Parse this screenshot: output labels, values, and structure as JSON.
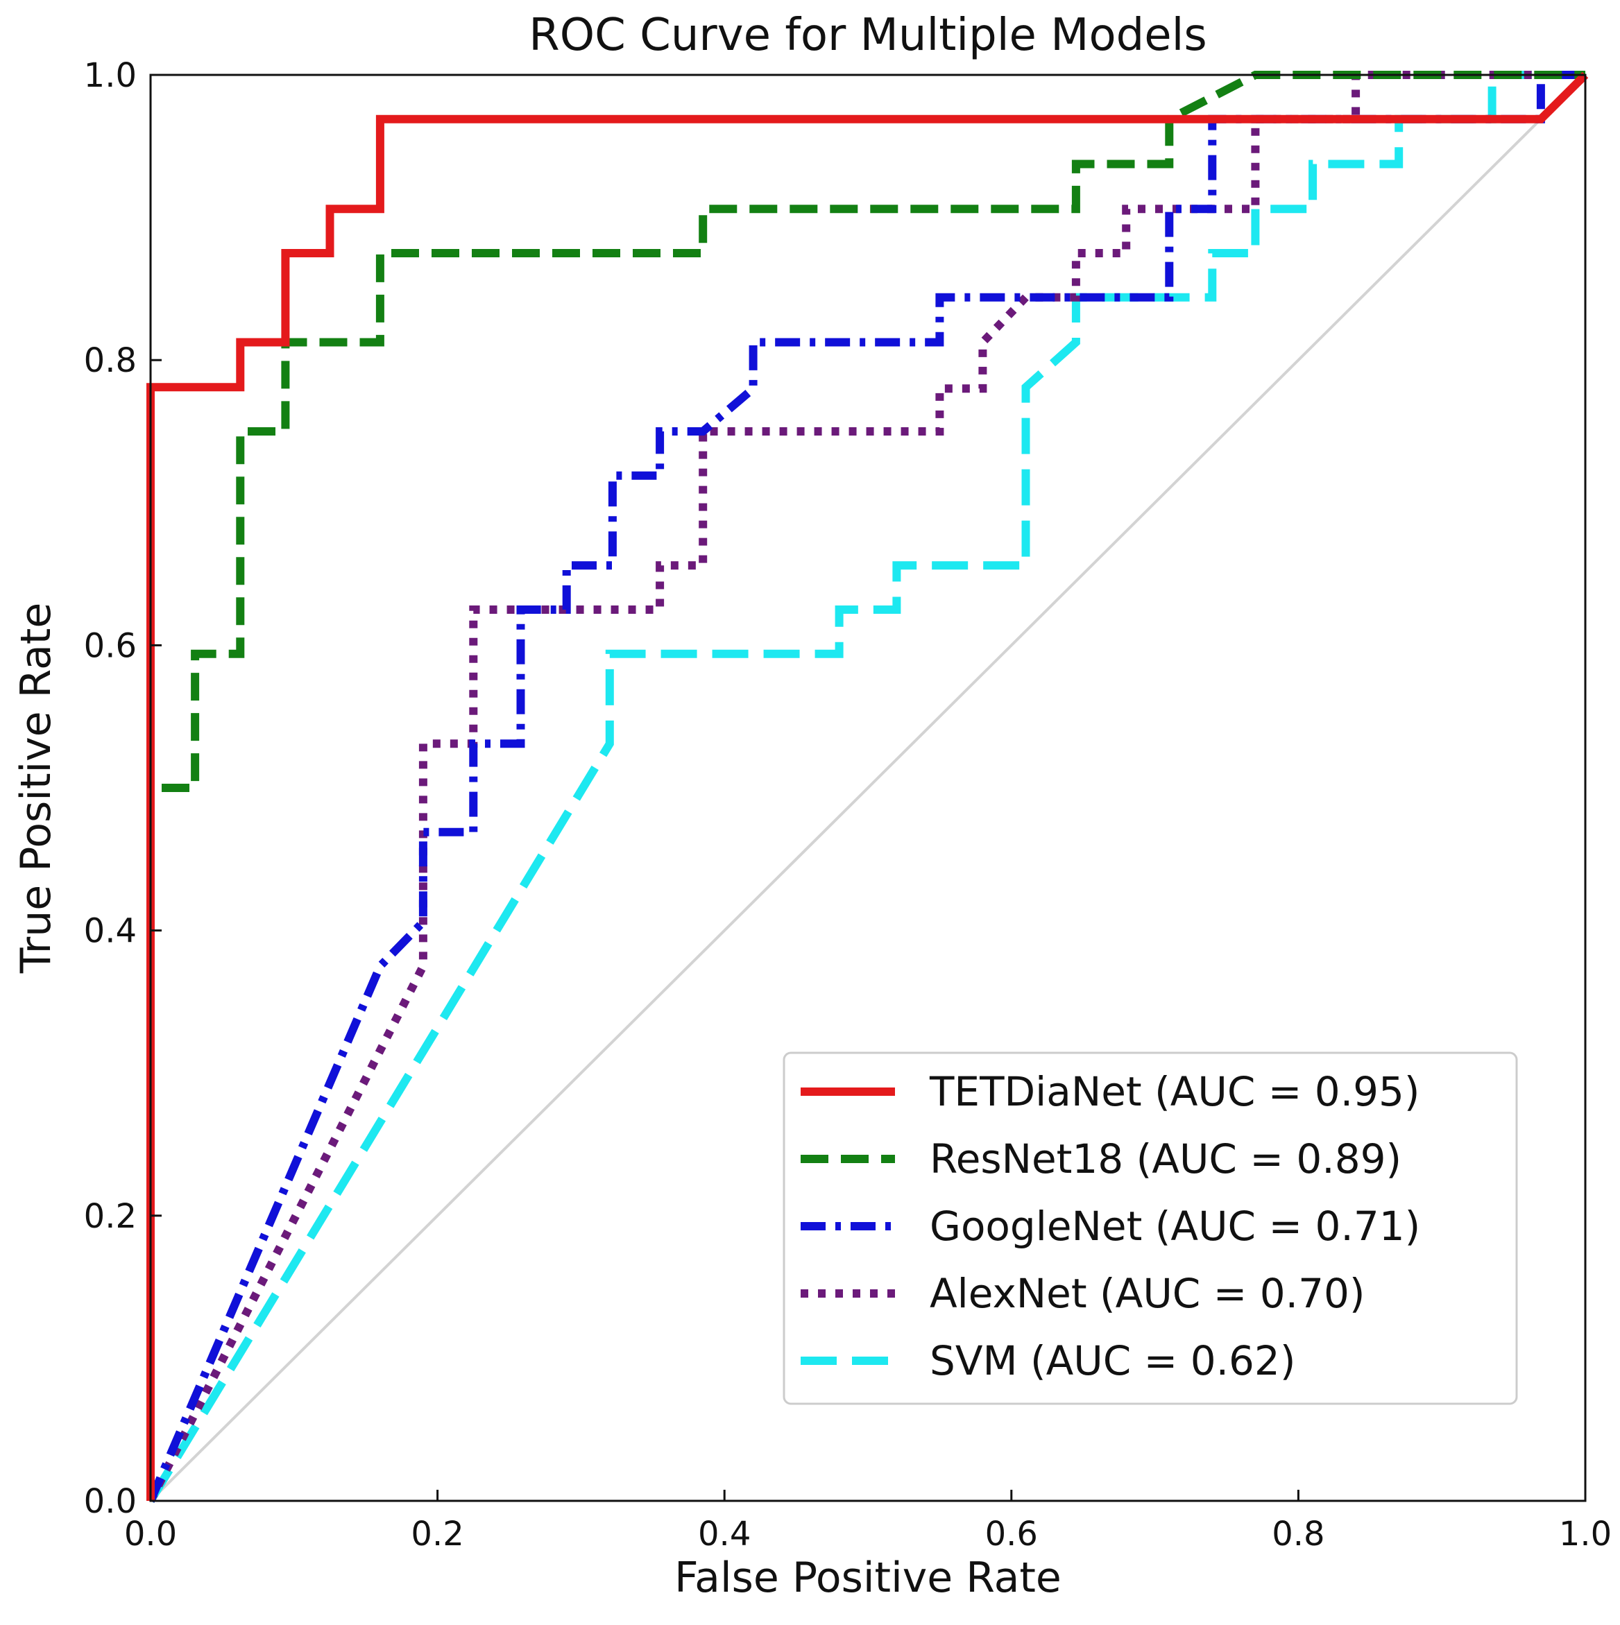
{
  "chart_data": {
    "type": "line",
    "title": "ROC Curve for Multiple Models",
    "xlabel": "False Positive Rate",
    "ylabel": "True Positive Rate",
    "xlim": [
      0.0,
      1.0
    ],
    "ylim": [
      0.0,
      1.0
    ],
    "x_ticks": [
      "0.0",
      "0.2",
      "0.4",
      "0.6",
      "0.8",
      "1.0"
    ],
    "y_ticks": [
      "0.0",
      "0.2",
      "0.4",
      "0.6",
      "0.8",
      "1.0"
    ],
    "grid": false,
    "legend_position": "lower-right",
    "reference_line": {
      "name": "chance",
      "x": [
        0,
        1
      ],
      "y": [
        0,
        1
      ],
      "color": "#d3d3d3"
    },
    "series": [
      {
        "name": "TETDiaNet (AUC = 0.95)",
        "color": "#e41a1c",
        "style": "solid",
        "x": [
          0,
          0,
          0.0625,
          0.0625,
          0.094,
          0.094,
          0.125,
          0.125,
          0.16,
          0.16,
          0.969,
          1.0
        ],
        "y": [
          0,
          0.781,
          0.781,
          0.8125,
          0.8125,
          0.875,
          0.875,
          0.906,
          0.906,
          0.969,
          0.969,
          1.0
        ]
      },
      {
        "name": "ResNet18 (AUC = 0.89)",
        "color": "#138013",
        "style": "dashed",
        "x": [
          0,
          0,
          0.031,
          0.031,
          0.0625,
          0.0625,
          0.094,
          0.094,
          0.16,
          0.16,
          0.385,
          0.385,
          0.645,
          0.645,
          0.71,
          0.71,
          0.77,
          1.0
        ],
        "y": [
          0,
          0.5,
          0.5,
          0.594,
          0.594,
          0.75,
          0.75,
          0.8125,
          0.8125,
          0.875,
          0.875,
          0.906,
          0.906,
          0.9375,
          0.9375,
          0.969,
          1.0,
          1.0
        ]
      },
      {
        "name": "GoogleNet (AUC = 0.71)",
        "color": "#1010d8",
        "style": "dashdot",
        "x": [
          0,
          0.16,
          0.19,
          0.19,
          0.225,
          0.225,
          0.258,
          0.258,
          0.29,
          0.29,
          0.322,
          0.322,
          0.355,
          0.355,
          0.385,
          0.42,
          0.42,
          0.55,
          0.55,
          0.71,
          0.71,
          0.74,
          0.74,
          0.969,
          0.969,
          1.0
        ],
        "y": [
          0,
          0.375,
          0.406,
          0.469,
          0.469,
          0.531,
          0.531,
          0.625,
          0.625,
          0.656,
          0.656,
          0.719,
          0.719,
          0.75,
          0.75,
          0.78,
          0.8125,
          0.8125,
          0.844,
          0.844,
          0.906,
          0.906,
          0.969,
          0.969,
          1.0,
          1.0
        ]
      },
      {
        "name": "AlexNet (AUC = 0.70)",
        "color": "#6b1a7a",
        "style": "dotted",
        "x": [
          0,
          0.19,
          0.19,
          0.225,
          0.225,
          0.355,
          0.355,
          0.385,
          0.385,
          0.55,
          0.55,
          0.58,
          0.58,
          0.61,
          0.645,
          0.645,
          0.68,
          0.68,
          0.77,
          0.77,
          0.84,
          0.84,
          1.0
        ],
        "y": [
          0,
          0.375,
          0.531,
          0.531,
          0.625,
          0.625,
          0.656,
          0.656,
          0.75,
          0.75,
          0.78,
          0.78,
          0.8125,
          0.844,
          0.844,
          0.875,
          0.875,
          0.906,
          0.906,
          0.969,
          0.969,
          1.0,
          1.0
        ]
      },
      {
        "name": "SVM (AUC = 0.62)",
        "color": "#1de8f0",
        "style": "longdash",
        "x": [
          0,
          0.32,
          0.32,
          0.48,
          0.48,
          0.52,
          0.52,
          0.61,
          0.61,
          0.645,
          0.645,
          0.74,
          0.74,
          0.77,
          0.77,
          0.81,
          0.81,
          0.87,
          0.87,
          0.935,
          0.935,
          1.0
        ],
        "y": [
          0,
          0.531,
          0.594,
          0.594,
          0.625,
          0.625,
          0.656,
          0.656,
          0.781,
          0.8125,
          0.844,
          0.844,
          0.875,
          0.875,
          0.906,
          0.906,
          0.9375,
          0.9375,
          0.969,
          0.969,
          1.0,
          1.0
        ]
      }
    ]
  }
}
